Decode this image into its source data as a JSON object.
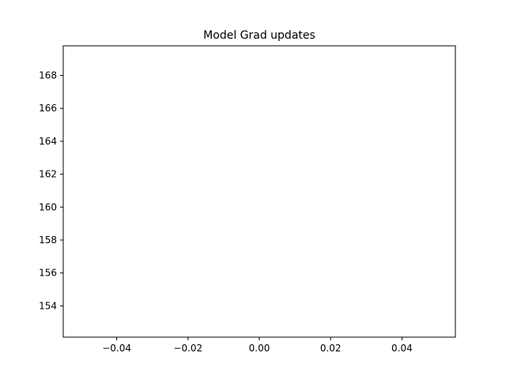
{
  "chart_data": {
    "type": "line",
    "title": "Model Grad updates",
    "xlabel": "",
    "ylabel": "",
    "xlim": [
      -0.055,
      0.055
    ],
    "ylim": [
      152.1,
      169.8
    ],
    "x_ticks": [
      -0.04,
      -0.02,
      0.0,
      0.02,
      0.04
    ],
    "x_tick_labels": [
      "−0.04",
      "−0.02",
      "0.00",
      "0.02",
      "0.04"
    ],
    "y_ticks": [
      154,
      156,
      158,
      160,
      162,
      164,
      166,
      168
    ],
    "y_tick_labels": [
      "154",
      "156",
      "158",
      "160",
      "162",
      "164",
      "166",
      "168"
    ],
    "series": [],
    "grid": false
  }
}
